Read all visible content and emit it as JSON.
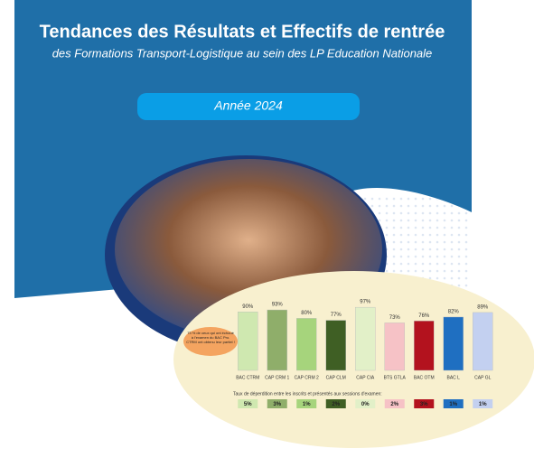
{
  "header": {
    "title": "Tendances des Résultats et Effectifs de rentrée",
    "subtitle": "des Formations Transport-Logistique au sein des LP Education Nationale",
    "year_button": "Année 2024"
  },
  "chart_data": {
    "type": "bar",
    "categories": [
      "BAC CTRM",
      "CAP CRM 1",
      "CAP CRM 2",
      "CAP CLM",
      "CAP CIA",
      "BTS GTLA",
      "BAC OTM",
      "BAC L",
      "CAP GL"
    ],
    "values": [
      90,
      93,
      80,
      77,
      97,
      73,
      76,
      82,
      89
    ],
    "value_labels": [
      "90%",
      "93%",
      "80%",
      "77%",
      "97%",
      "73%",
      "76%",
      "82%",
      "89%"
    ],
    "colors": [
      "#cfe8b0",
      "#8fae6a",
      "#a6d47c",
      "#3f5f24",
      "#e2f0c8",
      "#f6c2c6",
      "#b3121e",
      "#1f6fc1",
      "#c3d0f0"
    ],
    "annotation": "73 % de ceux qui ont échoué à l'examen du BAC Pro. CTRM ont obtenu leur partiel !"
  },
  "loss_rates": {
    "title": "Taux de déperdition entre les inscrits et présentés aux sessions d'examen:",
    "values": [
      "5%",
      "3%",
      "1%",
      "2%",
      "0%",
      "2%",
      "3%",
      "1%",
      "1%"
    ]
  }
}
